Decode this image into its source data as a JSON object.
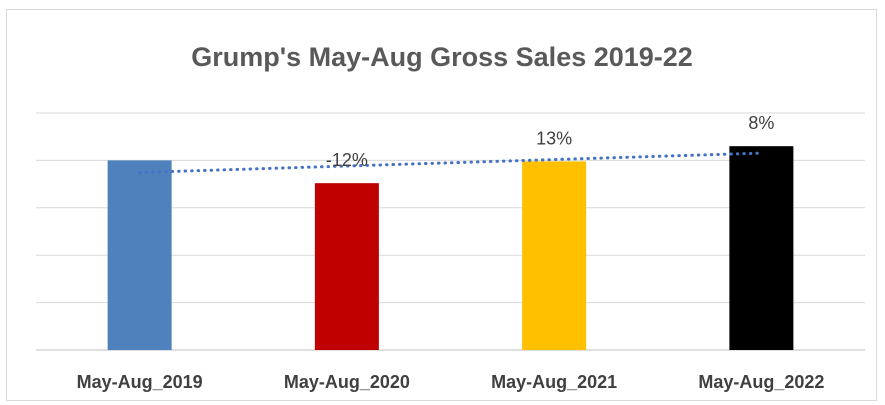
{
  "chart_data": {
    "type": "bar",
    "title": "Grump's May-Aug Gross Sales 2019-22",
    "xlabel": "",
    "ylabel": "",
    "categories": [
      "May-Aug_2019",
      "May-Aug_2020",
      "May-Aug_2021",
      "May-Aug_2022"
    ],
    "values": [
      100,
      88,
      99.5,
      107.5
    ],
    "colors": [
      "#4f81bd",
      "#c00000",
      "#ffc000",
      "#000000"
    ],
    "data_labels": [
      "",
      "-12%",
      "13%",
      "8%"
    ],
    "ylim": [
      0,
      125
    ],
    "y_ticks_visible": false,
    "grid": true,
    "legend": "none",
    "trendline": {
      "type": "linear",
      "style": "dotted",
      "color": "#4472c4"
    }
  }
}
